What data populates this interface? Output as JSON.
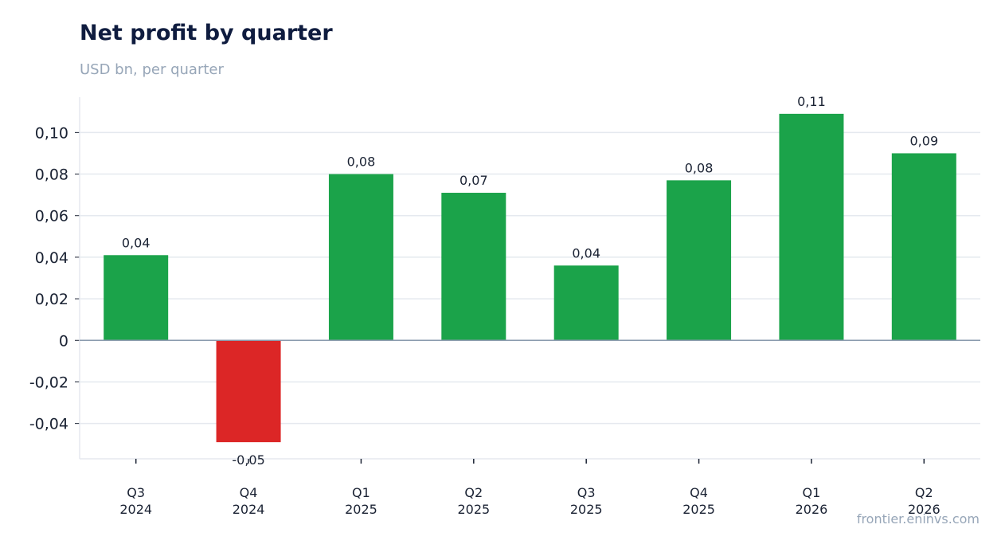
{
  "title": "Net profit by quarter",
  "subtitle": "USD bn, per quarter",
  "source": "frontier.eninvs.com",
  "colors": {
    "positive": "#1ba34a",
    "negative": "#dc2626",
    "grid": "#e5e9ef",
    "zero_line": "#8a9bad"
  },
  "chart_data": {
    "type": "bar",
    "categories": [
      [
        "Q3",
        "2024"
      ],
      [
        "Q4",
        "2024"
      ],
      [
        "Q1",
        "2025"
      ],
      [
        "Q2",
        "2025"
      ],
      [
        "Q3",
        "2025"
      ],
      [
        "Q4",
        "2025"
      ],
      [
        "Q1",
        "2026"
      ],
      [
        "Q2",
        "2026"
      ]
    ],
    "values": [
      0.041,
      -0.049,
      0.08,
      0.071,
      0.036,
      0.077,
      0.109,
      0.09
    ],
    "data_labels": [
      "0,04",
      "-0,05",
      "0,08",
      "0,07",
      "0,04",
      "0,08",
      "0,11",
      "0,09"
    ],
    "yticks": [
      -0.04,
      -0.02,
      0,
      0.02,
      0.04,
      0.06,
      0.08,
      0.1
    ],
    "ytick_labels": [
      "-0,04",
      "-0,02",
      "0",
      "0,02",
      "0,04",
      "0,06",
      "0,08",
      "0,10"
    ],
    "ylim": [
      -0.057,
      0.117
    ],
    "grid": true,
    "title": "Net profit by quarter",
    "subtitle": "USD bn, per quarter"
  }
}
